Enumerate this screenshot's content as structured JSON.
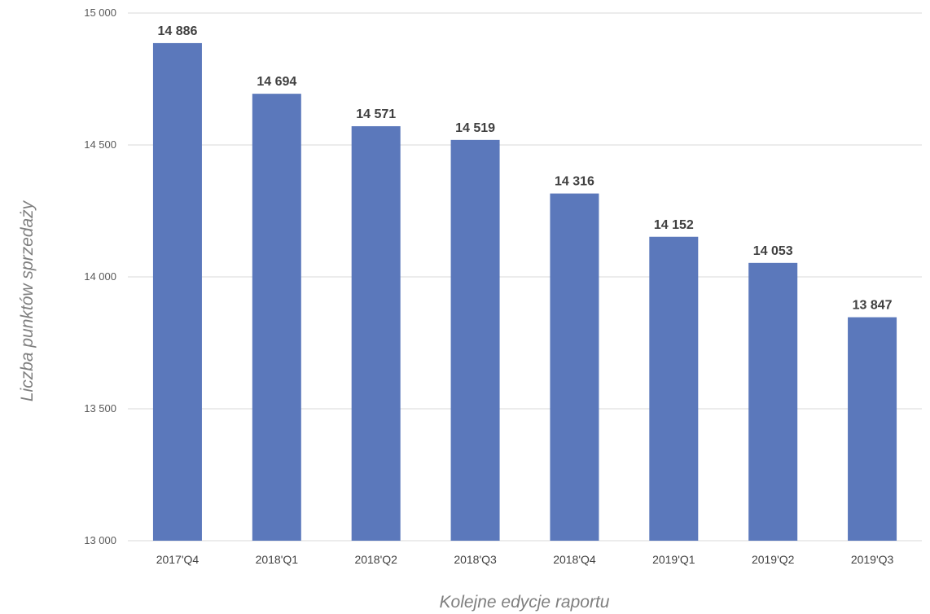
{
  "chart_data": {
    "type": "bar",
    "title": "",
    "xlabel": "Kolejne edycje raportu",
    "ylabel": "Liczba punktów sprzedaży",
    "categories": [
      "2017'Q4",
      "2018'Q1",
      "2018'Q2",
      "2018'Q3",
      "2018'Q4",
      "2019'Q1",
      "2019'Q2",
      "2019'Q3"
    ],
    "values": [
      14886,
      14694,
      14571,
      14519,
      14316,
      14152,
      14053,
      13847
    ],
    "value_labels": [
      "14 886",
      "14 694",
      "14 571",
      "14 519",
      "14 316",
      "14 152",
      "14 053",
      "13 847"
    ],
    "ylim": [
      13000,
      15000
    ],
    "y_ticks": [
      13000,
      13500,
      14000,
      14500,
      15000
    ],
    "y_tick_labels": [
      "13 000",
      "13 500",
      "14 000",
      "14 500",
      "15 000"
    ],
    "grid": true,
    "legend": "none",
    "colors": {
      "bar": "#5b78bb",
      "grid": "#d9d9d9",
      "data_label": "#404040",
      "axis_title": "#7f7f7f"
    }
  }
}
